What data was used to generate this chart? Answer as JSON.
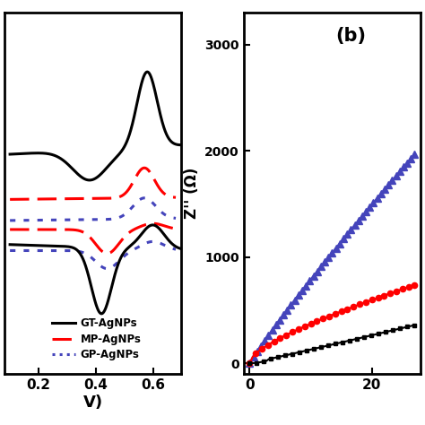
{
  "fig_width": 4.74,
  "fig_height": 4.74,
  "dpi": 100,
  "background": "white",
  "panel_a": {
    "xlabel": "V)",
    "xticks": [
      0.2,
      0.4,
      0.6
    ],
    "xlim": [
      0.08,
      0.7
    ],
    "ylim": [
      -0.55,
      0.65
    ],
    "legend_labels": [
      "GT-AgNPs",
      "MP-AgNPs",
      "GP-AgNPs"
    ],
    "legend_colors": [
      "black",
      "red",
      "#5555cc"
    ]
  },
  "panel_b": {
    "label": "(b)",
    "ylabel": "Z'' (Ω)",
    "xticks": [
      0,
      20
    ],
    "xlim": [
      -1,
      28
    ],
    "ylim": [
      -100,
      3300
    ],
    "yticks": [
      0,
      1000,
      2000,
      3000
    ]
  }
}
